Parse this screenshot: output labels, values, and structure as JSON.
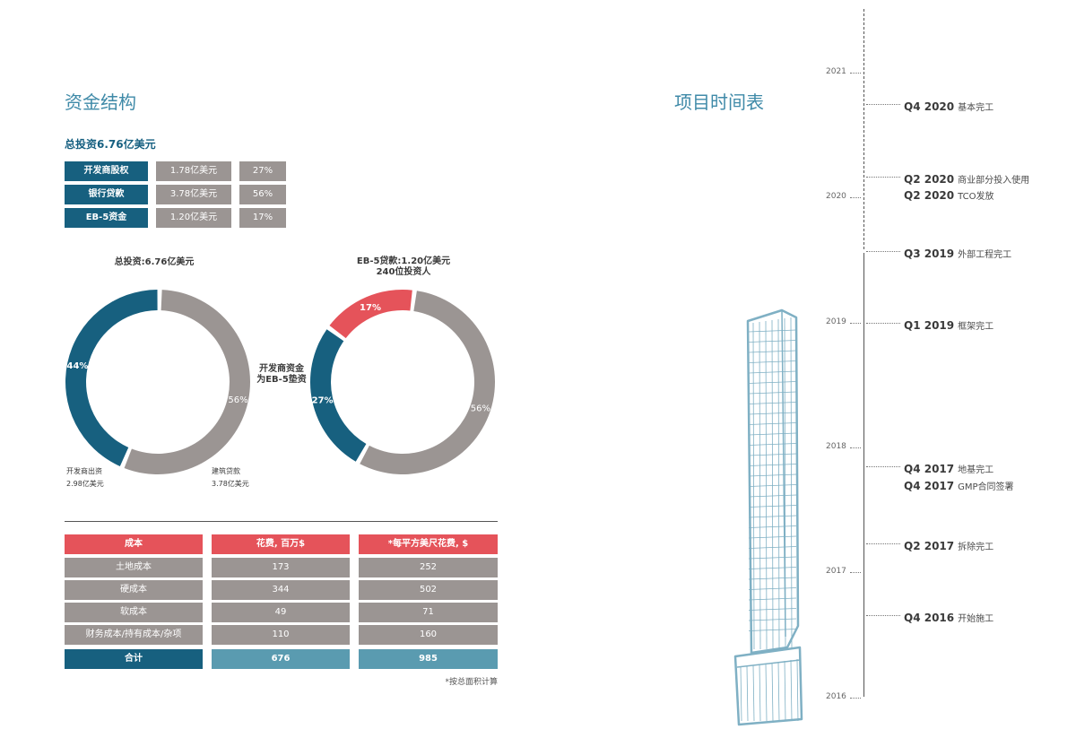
{
  "funding": {
    "title": "资金结构",
    "subtitle": "总投资6.76亿美元",
    "rows": [
      {
        "name": "开发商股权",
        "amount": "1.78亿美元",
        "pct": "27%"
      },
      {
        "name": "银行贷款",
        "amount": "3.78亿美元",
        "pct": "56%"
      },
      {
        "name": "EB-5资金",
        "amount": "1.20亿美元",
        "pct": "17%"
      }
    ]
  },
  "donuts": {
    "left": {
      "title": "总投资:6.76亿美元",
      "slices": [
        {
          "label": "44%",
          "value": 44,
          "color": "#17607f"
        },
        {
          "label": "56%",
          "value": 56,
          "color": "#9b9593"
        }
      ],
      "caption_left_1": "开发商出资",
      "caption_left_2": "2.98亿美元",
      "caption_right_1": "建筑贷款",
      "caption_right_2": "3.78亿美元"
    },
    "middle_note_1": "开发商资金",
    "middle_note_2": "为EB-5垫资",
    "right": {
      "title_1": "EB-5贷款:1.20亿美元",
      "title_2": "240位投资人",
      "slices": [
        {
          "label": "17%",
          "value": 17,
          "color": "#e5535a"
        },
        {
          "label": "27%",
          "value": 27,
          "color": "#17607f"
        },
        {
          "label": "56%",
          "value": 56,
          "color": "#9b9593"
        }
      ]
    }
  },
  "costs": {
    "headers": [
      "成本",
      "花费, 百万$",
      "*每平方美尺花费, $"
    ],
    "rows": [
      [
        "土地成本",
        "173",
        "252"
      ],
      [
        "硬成本",
        "344",
        "502"
      ],
      [
        "软成本",
        "49",
        "71"
      ],
      [
        "财务成本/持有成本/杂项",
        "110",
        "160"
      ]
    ],
    "total": [
      "合计",
      "676",
      "985"
    ],
    "footnote": "*按总面积计算"
  },
  "timeline": {
    "title": "项目时间表",
    "years": [
      "2021",
      "2020",
      "2019",
      "2018",
      "2017",
      "2016"
    ],
    "events": [
      {
        "q": "Q4 2020",
        "desc": "基本完工"
      },
      {
        "q": "Q2 2020",
        "desc": "商业部分投入使用"
      },
      {
        "q": "Q2 2020",
        "desc": "TCO发放"
      },
      {
        "q": "Q3 2019",
        "desc": "外部工程完工"
      },
      {
        "q": "Q1 2019",
        "desc": "框架完工"
      },
      {
        "q": "Q4 2017",
        "desc": "地基完工"
      },
      {
        "q": "Q4 2017",
        "desc": "GMP合同签署"
      },
      {
        "q": "Q2 2017",
        "desc": "拆除完工"
      },
      {
        "q": "Q4 2016",
        "desc": "开始施工"
      }
    ]
  }
}
